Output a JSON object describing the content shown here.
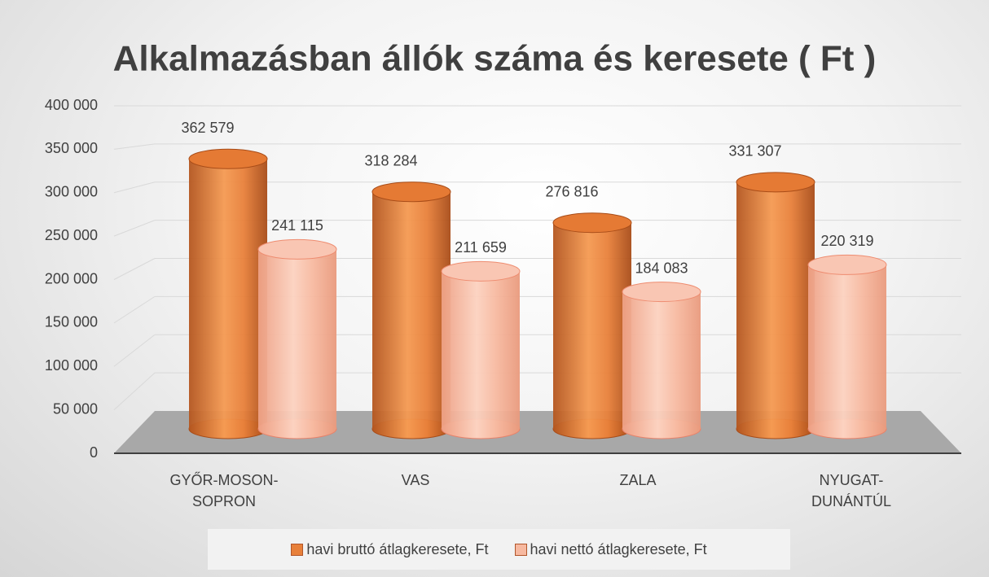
{
  "chart_data": {
    "type": "bar",
    "title": "Alkalmazásban állók száma és keresete ( Ft )",
    "categories": [
      "GYŐR-MOSON-SOPRON",
      "VAS",
      "ZALA",
      "NYUGAT-DUNÁNTÚL"
    ],
    "series": [
      {
        "name": "havi bruttó átlagkeresete, Ft",
        "color": "#e8803a",
        "values": [
          362579,
          318284,
          276816,
          331307
        ],
        "value_labels": [
          "362 579",
          "318 284",
          "276 816",
          "331 307"
        ]
      },
      {
        "name": "havi nettó átlagkeresete, Ft",
        "color": "#f7b9a0",
        "values": [
          241115,
          211659,
          184083,
          220319
        ],
        "value_labels": [
          "241 115",
          "211 659",
          "184 083",
          "220 319"
        ]
      }
    ],
    "ylim": [
      0,
      400000
    ],
    "yticks": [
      0,
      {
        "value": 50000,
        "label": "50 000"
      },
      {
        "value": 100000,
        "label": "100 000"
      },
      {
        "value": 150000,
        "label": "150 000"
      },
      {
        "value": 200000,
        "label": "200 000"
      },
      {
        "value": 250000,
        "label": "250 000"
      },
      {
        "value": 300000,
        "label": "300 000"
      },
      {
        "value": 350000,
        "label": "350 000"
      },
      {
        "value": 400000,
        "label": "400 000"
      }
    ],
    "grid": true,
    "legend": "bottom"
  }
}
